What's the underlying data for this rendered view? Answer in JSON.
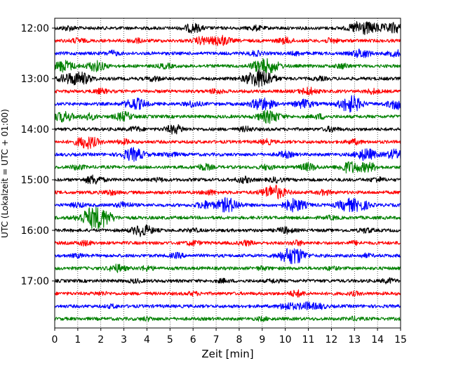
{
  "chart_data": {
    "type": "line",
    "title": "",
    "xlabel": "Zeit  [min]",
    "ylabel": "UTC (Lokalzeit = UTC + 01:00)",
    "xlim": [
      0,
      15
    ],
    "x_ticks": [
      0,
      1,
      2,
      3,
      4,
      5,
      6,
      7,
      8,
      9,
      10,
      11,
      12,
      13,
      14,
      15
    ],
    "x_grid": "dotted",
    "y_ticks": [
      "12:00",
      "13:00",
      "14:00",
      "15:00",
      "16:00",
      "17:00"
    ],
    "trace_interval_min": 15,
    "trace_colors": [
      "#000000",
      "#ff0000",
      "#0000ff",
      "#008000"
    ],
    "traces": [
      {
        "start": "12:00",
        "events": [
          [
            6.0,
            0.6
          ],
          [
            13.3,
            1.0
          ],
          [
            14.7,
            0.7
          ],
          [
            14.0,
            0.4
          ],
          [
            0.6,
            0.3
          ],
          [
            8.7,
            0.3
          ]
        ]
      },
      {
        "start": "12:15",
        "events": [
          [
            7.2,
            0.7
          ],
          [
            6.4,
            0.5
          ],
          [
            10.0,
            0.4
          ],
          [
            12.0,
            0.3
          ],
          [
            1.0,
            0.3
          ],
          [
            3.5,
            0.3
          ]
        ]
      },
      {
        "start": "12:30",
        "events": [
          [
            13.3,
            0.6
          ],
          [
            14.8,
            0.4
          ],
          [
            8.7,
            0.3
          ],
          [
            2.5,
            0.3
          ],
          [
            10.5,
            0.2
          ]
        ]
      },
      {
        "start": "12:45",
        "events": [
          [
            0.4,
            0.8
          ],
          [
            1.8,
            0.7
          ],
          [
            9.3,
            0.9
          ],
          [
            8.8,
            0.5
          ],
          [
            4.8,
            0.3
          ],
          [
            12.5,
            0.3
          ]
        ]
      },
      {
        "start": "13:00",
        "events": [
          [
            1.1,
            0.9
          ],
          [
            8.7,
            1.0
          ],
          [
            9.2,
            0.7
          ],
          [
            0.5,
            0.5
          ],
          [
            4.3,
            0.3
          ],
          [
            11.5,
            0.2
          ]
        ]
      },
      {
        "start": "13:15",
        "events": [
          [
            11.0,
            0.5
          ],
          [
            13.8,
            0.3
          ],
          [
            2.0,
            0.3
          ],
          [
            7.0,
            0.3
          ]
        ]
      },
      {
        "start": "13:30",
        "events": [
          [
            9.0,
            0.9
          ],
          [
            3.5,
            0.8
          ],
          [
            12.7,
            0.8
          ],
          [
            13.0,
            0.6
          ],
          [
            14.9,
            0.8
          ],
          [
            10.8,
            0.6
          ],
          [
            6.0,
            0.4
          ]
        ]
      },
      {
        "start": "13:45",
        "events": [
          [
            0.4,
            0.7
          ],
          [
            3.0,
            0.6
          ],
          [
            9.3,
            0.9
          ],
          [
            1.5,
            0.4
          ],
          [
            11.5,
            0.3
          ]
        ]
      },
      {
        "start": "14:00",
        "events": [
          [
            5.2,
            0.6
          ],
          [
            3.5,
            0.3
          ],
          [
            8.3,
            0.3
          ],
          [
            12.0,
            0.3
          ]
        ]
      },
      {
        "start": "14:15",
        "events": [
          [
            1.4,
            0.9
          ],
          [
            3.0,
            0.3
          ],
          [
            9.2,
            0.3
          ],
          [
            13.0,
            0.3
          ]
        ]
      },
      {
        "start": "14:30",
        "events": [
          [
            3.4,
            0.9
          ],
          [
            13.5,
            0.8
          ],
          [
            14.8,
            0.7
          ],
          [
            10.0,
            0.4
          ],
          [
            5.0,
            0.3
          ]
        ]
      },
      {
        "start": "14:45",
        "events": [
          [
            12.8,
            0.8
          ],
          [
            13.6,
            0.6
          ],
          [
            11.0,
            0.5
          ],
          [
            6.5,
            0.4
          ],
          [
            1.0,
            0.3
          ],
          [
            9.2,
            0.3
          ]
        ]
      },
      {
        "start": "15:00",
        "events": [
          [
            1.7,
            0.6
          ],
          [
            8.2,
            0.4
          ],
          [
            9.6,
            0.3
          ],
          [
            14.0,
            0.3
          ],
          [
            4.5,
            0.2
          ]
        ]
      },
      {
        "start": "15:15",
        "events": [
          [
            9.5,
            1.0
          ],
          [
            11.7,
            0.3
          ],
          [
            2.4,
            0.3
          ],
          [
            6.7,
            0.3
          ]
        ]
      },
      {
        "start": "15:30",
        "events": [
          [
            7.5,
            1.0
          ],
          [
            10.4,
            0.9
          ],
          [
            12.7,
            0.8
          ],
          [
            13.3,
            0.6
          ],
          [
            6.5,
            0.5
          ],
          [
            3.0,
            0.4
          ],
          [
            1.0,
            0.3
          ]
        ]
      },
      {
        "start": "15:45",
        "events": [
          [
            1.5,
            1.0
          ],
          [
            1.9,
            0.8
          ],
          [
            2.2,
            0.6
          ],
          [
            12.0,
            0.2
          ]
        ]
      },
      {
        "start": "16:00",
        "events": [
          [
            3.8,
            0.8
          ],
          [
            10.0,
            0.4
          ],
          [
            13.5,
            0.3
          ],
          [
            6.0,
            0.2
          ]
        ]
      },
      {
        "start": "16:15",
        "events": [
          [
            1.3,
            0.3
          ],
          [
            6.0,
            0.3
          ],
          [
            8.3,
            0.3
          ],
          [
            10.5,
            0.3
          ],
          [
            13.0,
            0.2
          ]
        ]
      },
      {
        "start": "16:30",
        "events": [
          [
            10.2,
            1.0
          ],
          [
            10.6,
            0.5
          ],
          [
            5.3,
            0.3
          ],
          [
            1.0,
            0.2
          ],
          [
            13.5,
            0.2
          ]
        ]
      },
      {
        "start": "16:45",
        "events": [
          [
            2.7,
            0.5
          ],
          [
            4.0,
            0.3
          ],
          [
            9.0,
            0.2
          ],
          [
            12.0,
            0.2
          ]
        ]
      },
      {
        "start": "17:00",
        "events": [
          [
            14.5,
            0.3
          ],
          [
            9.5,
            0.2
          ],
          [
            3.5,
            0.2
          ],
          [
            7.3,
            0.2
          ]
        ]
      },
      {
        "start": "17:15",
        "events": [
          [
            10.5,
            0.4
          ],
          [
            6.0,
            0.2
          ],
          [
            2.0,
            0.2
          ],
          [
            13.0,
            0.2
          ]
        ]
      },
      {
        "start": "17:30",
        "events": [
          [
            10.1,
            0.5
          ],
          [
            10.9,
            0.5
          ],
          [
            11.5,
            0.3
          ],
          [
            2.5,
            0.2
          ]
        ]
      },
      {
        "start": "17:45",
        "events": [
          [
            4.0,
            0.2
          ],
          [
            9.0,
            0.2
          ],
          [
            13.0,
            0.2
          ]
        ]
      }
    ]
  }
}
